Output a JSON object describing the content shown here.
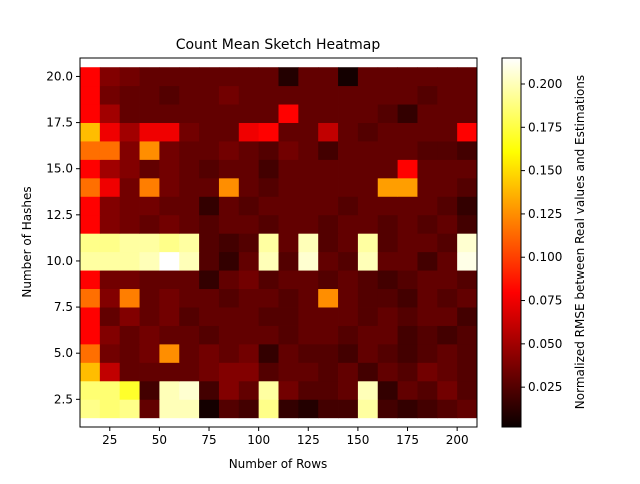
{
  "chart_data": {
    "type": "heatmap",
    "title": "Count Mean Sketch Heatmap",
    "xlabel": "Number of Rows",
    "ylabel": "Number of Hashes",
    "colorbar_label": "Normalized RMSE between Real values and Estimations",
    "colormap": "hot",
    "xlim": [
      10,
      210
    ],
    "ylim": [
      1,
      21
    ],
    "x_ticks": [
      25,
      50,
      75,
      100,
      125,
      150,
      175,
      200
    ],
    "x_tick_labels": [
      "25",
      "50",
      "75",
      "100",
      "125",
      "150",
      "175",
      "200"
    ],
    "y_ticks": [
      2.5,
      5.0,
      7.5,
      10.0,
      12.5,
      15.0,
      17.5,
      20.0
    ],
    "y_tick_labels": [
      "2.5",
      "5.0",
      "7.5",
      "10.0",
      "12.5",
      "15.0",
      "17.5",
      "20.0"
    ],
    "colorbar_range": [
      0.002,
      0.215
    ],
    "colorbar_ticks": [
      0.025,
      0.05,
      0.075,
      0.1,
      0.125,
      0.15,
      0.175,
      0.2
    ],
    "colorbar_tick_labels": [
      "0.025",
      "0.050",
      "0.075",
      "0.100",
      "0.125",
      "0.150",
      "0.175",
      "0.200"
    ],
    "x": [
      15,
      25,
      35,
      45,
      55,
      65,
      75,
      85,
      95,
      105,
      115,
      125,
      135,
      145,
      155,
      165,
      175,
      185,
      195,
      205
    ],
    "y": [
      2,
      3,
      4,
      5,
      6,
      7,
      8,
      9,
      10,
      11,
      12,
      13,
      14,
      15,
      16,
      17,
      18,
      19,
      20
    ],
    "values": [
      [
        0.19,
        0.185,
        0.19,
        0.03,
        0.2,
        0.2,
        0.005,
        0.025,
        0.02,
        0.19,
        0.015,
        0.01,
        0.02,
        0.02,
        0.195,
        0.02,
        0.015,
        0.02,
        0.025,
        0.03
      ],
      [
        0.185,
        0.185,
        0.17,
        0.02,
        0.2,
        0.205,
        0.02,
        0.04,
        0.03,
        0.195,
        0.035,
        0.025,
        0.025,
        0.03,
        0.2,
        0.015,
        0.03,
        0.025,
        0.035,
        0.025
      ],
      [
        0.14,
        0.06,
        0.03,
        0.03,
        0.03,
        0.03,
        0.035,
        0.04,
        0.04,
        0.025,
        0.03,
        0.03,
        0.025,
        0.03,
        0.02,
        0.03,
        0.025,
        0.035,
        0.03,
        0.025
      ],
      [
        0.115,
        0.035,
        0.03,
        0.035,
        0.125,
        0.03,
        0.035,
        0.03,
        0.035,
        0.015,
        0.03,
        0.025,
        0.025,
        0.02,
        0.03,
        0.025,
        0.02,
        0.025,
        0.03,
        0.025
      ],
      [
        0.08,
        0.04,
        0.03,
        0.035,
        0.03,
        0.03,
        0.025,
        0.03,
        0.03,
        0.03,
        0.025,
        0.03,
        0.03,
        0.025,
        0.03,
        0.03,
        0.02,
        0.025,
        0.02,
        0.025
      ],
      [
        0.08,
        0.03,
        0.04,
        0.03,
        0.035,
        0.025,
        0.03,
        0.03,
        0.03,
        0.025,
        0.025,
        0.03,
        0.03,
        0.03,
        0.025,
        0.03,
        0.025,
        0.03,
        0.03,
        0.02
      ],
      [
        0.115,
        0.04,
        0.12,
        0.03,
        0.035,
        0.03,
        0.03,
        0.025,
        0.03,
        0.03,
        0.025,
        0.03,
        0.125,
        0.03,
        0.025,
        0.025,
        0.02,
        0.03,
        0.025,
        0.03
      ],
      [
        0.08,
        0.035,
        0.035,
        0.03,
        0.03,
        0.03,
        0.015,
        0.03,
        0.035,
        0.025,
        0.03,
        0.03,
        0.025,
        0.03,
        0.025,
        0.02,
        0.025,
        0.03,
        0.03,
        0.025
      ],
      [
        0.195,
        0.195,
        0.195,
        0.2,
        0.215,
        0.2,
        0.025,
        0.015,
        0.03,
        0.2,
        0.025,
        0.205,
        0.03,
        0.025,
        0.2,
        0.03,
        0.03,
        0.02,
        0.03,
        0.21
      ],
      [
        0.19,
        0.19,
        0.195,
        0.195,
        0.19,
        0.195,
        0.025,
        0.02,
        0.025,
        0.195,
        0.03,
        0.2,
        0.025,
        0.03,
        0.195,
        0.025,
        0.03,
        0.03,
        0.025,
        0.205
      ],
      [
        0.08,
        0.04,
        0.035,
        0.03,
        0.035,
        0.03,
        0.025,
        0.03,
        0.03,
        0.025,
        0.03,
        0.03,
        0.025,
        0.03,
        0.03,
        0.025,
        0.03,
        0.025,
        0.03,
        0.02
      ],
      [
        0.08,
        0.04,
        0.035,
        0.035,
        0.03,
        0.03,
        0.015,
        0.03,
        0.025,
        0.03,
        0.03,
        0.03,
        0.03,
        0.025,
        0.03,
        0.03,
        0.03,
        0.03,
        0.025,
        0.015
      ],
      [
        0.115,
        0.075,
        0.035,
        0.12,
        0.035,
        0.03,
        0.03,
        0.125,
        0.03,
        0.025,
        0.03,
        0.03,
        0.03,
        0.03,
        0.03,
        0.13,
        0.13,
        0.03,
        0.03,
        0.025
      ],
      [
        0.08,
        0.05,
        0.04,
        0.03,
        0.035,
        0.03,
        0.025,
        0.03,
        0.03,
        0.02,
        0.03,
        0.03,
        0.03,
        0.03,
        0.03,
        0.03,
        0.08,
        0.03,
        0.03,
        0.03
      ],
      [
        0.115,
        0.115,
        0.04,
        0.125,
        0.035,
        0.03,
        0.03,
        0.035,
        0.03,
        0.025,
        0.035,
        0.03,
        0.02,
        0.03,
        0.03,
        0.03,
        0.03,
        0.025,
        0.025,
        0.02
      ],
      [
        0.14,
        0.075,
        0.05,
        0.075,
        0.075,
        0.035,
        0.03,
        0.03,
        0.075,
        0.08,
        0.03,
        0.03,
        0.06,
        0.03,
        0.025,
        0.03,
        0.03,
        0.03,
        0.03,
        0.08
      ],
      [
        0.08,
        0.05,
        0.03,
        0.03,
        0.03,
        0.03,
        0.03,
        0.03,
        0.03,
        0.03,
        0.08,
        0.03,
        0.03,
        0.03,
        0.03,
        0.025,
        0.015,
        0.03,
        0.03,
        0.03
      ],
      [
        0.08,
        0.035,
        0.03,
        0.03,
        0.025,
        0.03,
        0.03,
        0.035,
        0.03,
        0.03,
        0.03,
        0.03,
        0.03,
        0.03,
        0.03,
        0.03,
        0.03,
        0.025,
        0.03,
        0.03
      ],
      [
        0.08,
        0.04,
        0.035,
        0.03,
        0.03,
        0.03,
        0.03,
        0.03,
        0.03,
        0.03,
        0.01,
        0.03,
        0.03,
        0.005,
        0.03,
        0.03,
        0.03,
        0.03,
        0.03,
        0.03
      ]
    ]
  }
}
